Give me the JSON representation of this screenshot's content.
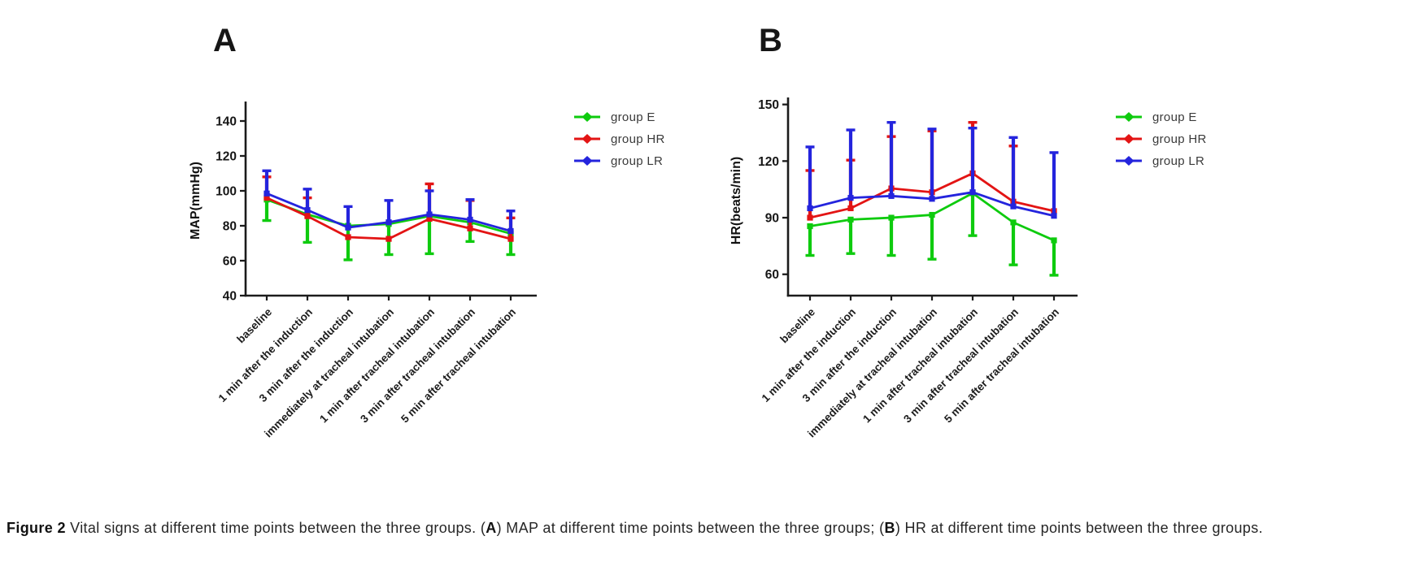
{
  "figure": {
    "caption": {
      "label": "Figure 2",
      "part1": " Vital signs at different time points between the three groups. (",
      "bold_a": "A",
      "part2": ") MAP at different time points between the three groups; (",
      "bold_b": "B",
      "part3": ") HR at different time points between the three groups."
    }
  },
  "colors": {
    "group_e": "#0ecb0e",
    "group_hr": "#e31414",
    "group_lr": "#2424dd",
    "axis": "#1b1b1b"
  },
  "chart_data": [
    {
      "id": "A",
      "type": "line",
      "panel_label": "A",
      "ylabel": "MAP(mmHg)",
      "ylim": [
        40,
        152
      ],
      "yticks": [
        40,
        60,
        80,
        100,
        120,
        140
      ],
      "grid": false,
      "legend_position": "right-of-plot",
      "categories": [
        "baseline",
        "1 min after the induction",
        "3 min after the induction",
        "immediately at tracheal intubation",
        "1 min after tracheal intubation",
        "3 min after tracheal intubation",
        "5 min after tracheal intubation"
      ],
      "series": [
        {
          "name": "group E",
          "color": "#0ecb0e",
          "values": [
            95,
            86.5,
            80,
            81,
            85.5,
            82,
            75.5
          ],
          "err_down": [
            83,
            70.5,
            60.5,
            63.5,
            64,
            71,
            63.5
          ],
          "err_up": [
            null,
            null,
            null,
            null,
            null,
            null,
            null
          ]
        },
        {
          "name": "group HR",
          "color": "#e31414",
          "values": [
            96,
            85.5,
            73.5,
            72.5,
            84,
            78.5,
            72.5
          ],
          "err_down": [
            null,
            null,
            null,
            null,
            null,
            null,
            null
          ],
          "err_up": [
            108,
            96,
            null,
            null,
            104,
            94.5,
            84.5
          ]
        },
        {
          "name": "group LR",
          "color": "#2424dd",
          "values": [
            98.5,
            89,
            79,
            82,
            86.5,
            83.5,
            77
          ],
          "err_down": [
            null,
            null,
            null,
            null,
            null,
            null,
            null
          ],
          "err_up": [
            111.5,
            101,
            91,
            94.5,
            100,
            95,
            88.5
          ]
        }
      ]
    },
    {
      "id": "B",
      "type": "line",
      "panel_label": "B",
      "ylabel": "HR(beats/min)",
      "ylim": [
        49,
        153
      ],
      "yticks": [
        60,
        90,
        120,
        150
      ],
      "grid": false,
      "legend_position": "right-of-plot",
      "categories": [
        "baseline",
        "1 min after the induction",
        "3 min after the induction",
        "immediately at tracheal intubation",
        "1 min after tracheal intubation",
        "3 min after tracheal intubation",
        "5 min after tracheal intubation"
      ],
      "series": [
        {
          "name": "group E",
          "color": "#0ecb0e",
          "values": [
            85.5,
            89,
            90,
            91.5,
            103,
            87.5,
            78
          ],
          "err_down": [
            70,
            71,
            70,
            68,
            80.5,
            65,
            59.5
          ],
          "err_up": [
            null,
            null,
            null,
            null,
            null,
            null,
            null
          ]
        },
        {
          "name": "group HR",
          "color": "#e31414",
          "values": [
            90,
            95,
            105.5,
            103.5,
            113.5,
            98.5,
            93.5
          ],
          "err_down": [
            null,
            null,
            null,
            null,
            null,
            null,
            null
          ],
          "err_up": [
            115,
            120.5,
            133,
            136,
            140.5,
            128,
            null
          ]
        },
        {
          "name": "group LR",
          "color": "#2424dd",
          "values": [
            95,
            100.5,
            101.5,
            100,
            103.5,
            96,
            91
          ],
          "err_down": [
            null,
            null,
            null,
            null,
            null,
            null,
            null
          ],
          "err_up": [
            127.5,
            136.5,
            140.5,
            137,
            137.5,
            132.5,
            124.5
          ]
        }
      ]
    }
  ]
}
